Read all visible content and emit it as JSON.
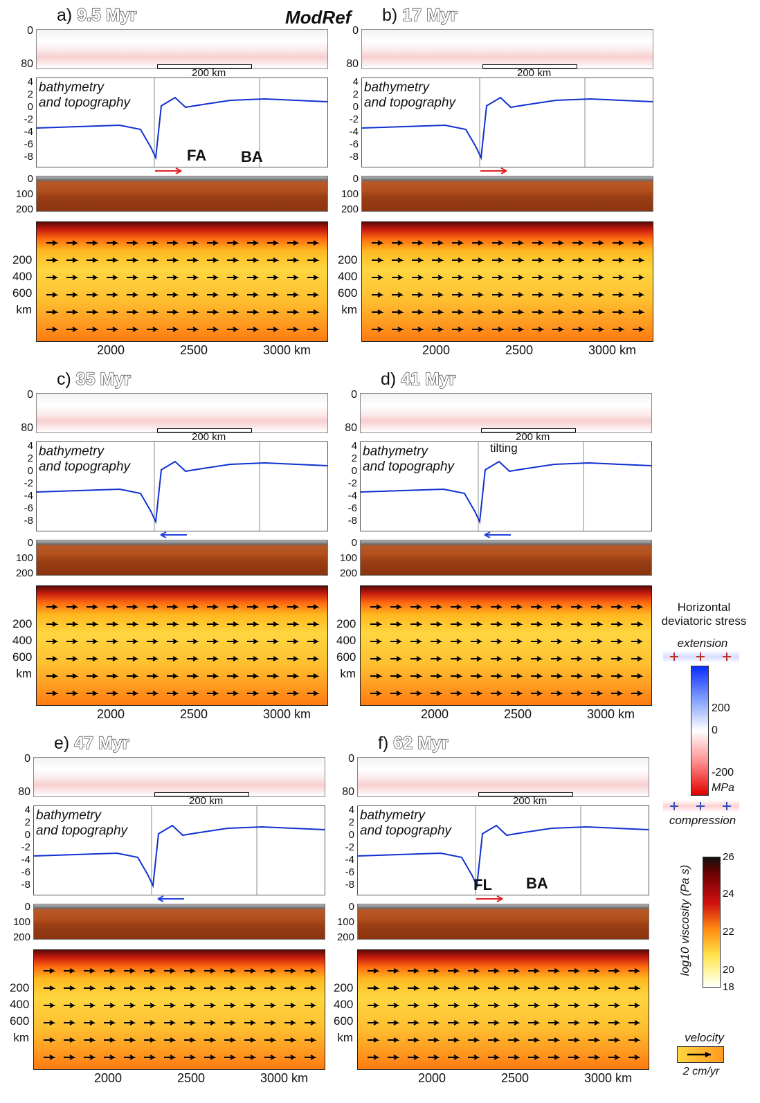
{
  "title": "ModRef",
  "panels": [
    {
      "id": "a",
      "letter": "a)",
      "time": "9.5 Myr",
      "annotations": [
        "FA",
        "BA"
      ],
      "scale_bar": "200 km",
      "arrow_color": "#e02020",
      "arrow_dir": "right"
    },
    {
      "id": "b",
      "letter": "b)",
      "time": "17 Myr",
      "annotations": [],
      "scale_bar": "200 km",
      "arrow_color": "#e02020",
      "arrow_dir": "right"
    },
    {
      "id": "c",
      "letter": "c)",
      "time": "35 Myr",
      "annotations": [],
      "scale_bar": "200 km",
      "arrow_color": "#2040e0",
      "arrow_dir": "left"
    },
    {
      "id": "d",
      "letter": "d)",
      "time": "41 Myr",
      "annotations": [
        "tilting"
      ],
      "scale_bar": "200 km",
      "arrow_color": "#2040e0",
      "arrow_dir": "left"
    },
    {
      "id": "e",
      "letter": "e)",
      "time": "47 Myr",
      "annotations": [],
      "scale_bar": "200 km",
      "arrow_color": "#2040e0",
      "arrow_dir": "left"
    },
    {
      "id": "f",
      "letter": "f)",
      "time": "62 Myr",
      "annotations": [
        "FL",
        "BA"
      ],
      "scale_bar": "200 km",
      "arrow_color": "#e02020",
      "arrow_dir": "right"
    }
  ],
  "bathymetry_label_1": "bathymetry",
  "bathymetry_label_2": "and topography",
  "stress_yticks": [
    "0",
    "80"
  ],
  "topo_yticks": [
    "4",
    "2",
    "0",
    "-2",
    "-4",
    "-6",
    "-8"
  ],
  "lith_yticks": [
    "0",
    "100",
    "200"
  ],
  "visc_yticks": [
    "200",
    "400",
    "600",
    "km"
  ],
  "xticks": [
    "2000",
    "2500",
    "3000 km"
  ],
  "legend": {
    "stress_title_1": "Horizontal",
    "stress_title_2": "deviatoric stress",
    "extension": "extension",
    "compression": "compression",
    "stress_ticks": [
      "200",
      "0",
      "-200"
    ],
    "stress_unit": "MPa",
    "visc_label": "log10 viscosity (Pa s)",
    "visc_ticks": [
      "26",
      "24",
      "22",
      "20",
      "18"
    ],
    "velocity": "velocity",
    "velocity_scale": "2 cm/yr"
  }
}
